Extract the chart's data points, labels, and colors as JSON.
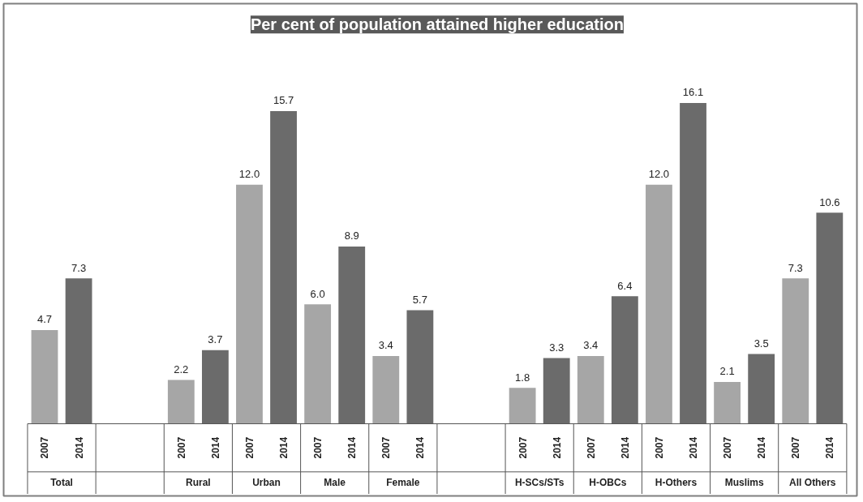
{
  "chart_data": {
    "type": "bar",
    "title": "Per cent of population attained higher education",
    "categories": [
      "Total",
      null,
      "Rural",
      "Urban",
      "Male",
      "Female",
      null,
      "H-SCs/STs",
      "H-OBCs",
      "H-Others",
      "Muslims",
      "All Others"
    ],
    "series": [
      {
        "name": "2007",
        "color": "#a6a6a6",
        "values": [
          4.7,
          null,
          2.2,
          12.0,
          6.0,
          3.4,
          null,
          1.8,
          3.4,
          12.0,
          2.1,
          7.3
        ],
        "value_labels": [
          "4.7",
          null,
          "2.2",
          "12.0",
          "6.0",
          "3.4",
          null,
          "1.8",
          "3.4",
          "12.0",
          "2.1",
          "7.3"
        ]
      },
      {
        "name": "2014",
        "color": "#6b6b6b",
        "values": [
          7.3,
          null,
          3.7,
          15.7,
          8.9,
          5.7,
          null,
          3.3,
          6.4,
          16.1,
          3.5,
          10.6
        ],
        "value_labels": [
          "7.3",
          null,
          "3.7",
          "15.7",
          "8.9",
          "5.7",
          null,
          "3.3",
          "6.4",
          "16.1",
          "3.5",
          "10.6"
        ]
      }
    ],
    "grid": false
  }
}
